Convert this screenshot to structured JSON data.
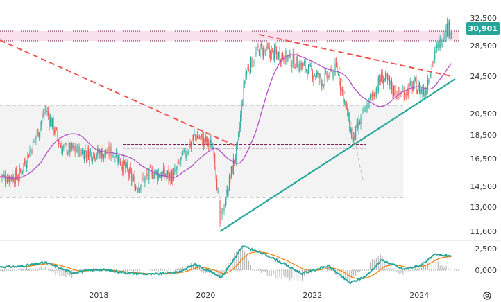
{
  "chart_data": [
    {
      "type": "candlestick",
      "title": "",
      "colors": {
        "up": "#26a69a",
        "down": "#ef5350",
        "ma": "#b24fc8",
        "trendline_resist": "#ef5350",
        "trendline_support": "#26a69a",
        "zone": "#f3b7d4"
      },
      "x_ticks": [
        "2018",
        "2020",
        "2022",
        "2024"
      ],
      "y_ticks": [
        {
          "label": "32,500",
          "value": 32500
        },
        {
          "label": "28,500",
          "value": 28500
        },
        {
          "label": "24,500",
          "value": 24500
        },
        {
          "label": "20,500",
          "value": 20500
        },
        {
          "label": "18,500",
          "value": 18500
        },
        {
          "label": "16,500",
          "value": 16500
        },
        {
          "label": "14,500",
          "value": 14500
        },
        {
          "label": "13,000",
          "value": 13000
        },
        {
          "label": "11,600",
          "value": 11600
        }
      ],
      "current_price": {
        "label": "30,901",
        "value": 30901
      },
      "resistance_zone": [
        29200,
        30600
      ],
      "levels": [
        21400,
        17700,
        17400,
        13700
      ],
      "series_ohlc_anchor_points": [
        {
          "x": 2016.5,
          "close": 15200
        },
        {
          "x": 2016.8,
          "close": 18000
        },
        {
          "x": 2017.0,
          "close": 21000
        },
        {
          "x": 2017.3,
          "close": 17400
        },
        {
          "x": 2017.8,
          "close": 17000
        },
        {
          "x": 2018.3,
          "close": 17000
        },
        {
          "x": 2018.7,
          "close": 14500
        },
        {
          "x": 2019.0,
          "close": 15500
        },
        {
          "x": 2019.4,
          "close": 15200
        },
        {
          "x": 2019.8,
          "close": 18500
        },
        {
          "x": 2020.15,
          "close": 17500
        },
        {
          "x": 2020.27,
          "close": 12000
        },
        {
          "x": 2020.6,
          "close": 17500
        },
        {
          "x": 2020.75,
          "close": 25000
        },
        {
          "x": 2021.0,
          "close": 28000
        },
        {
          "x": 2021.5,
          "close": 27000
        },
        {
          "x": 2021.9,
          "close": 25500
        },
        {
          "x": 2022.2,
          "close": 24000
        },
        {
          "x": 2022.45,
          "close": 25500
        },
        {
          "x": 2022.75,
          "close": 18000
        },
        {
          "x": 2023.0,
          "close": 21000
        },
        {
          "x": 2023.3,
          "close": 24500
        },
        {
          "x": 2023.6,
          "close": 22500
        },
        {
          "x": 2023.9,
          "close": 23500
        },
        {
          "x": 2024.1,
          "close": 22800
        },
        {
          "x": 2024.3,
          "close": 27500
        },
        {
          "x": 2024.5,
          "close": 31000
        }
      ]
    },
    {
      "type": "line",
      "title": "",
      "y_ticks": [
        {
          "label": "2,500",
          "value": 2500
        },
        {
          "label": "0,000",
          "value": 0
        }
      ],
      "series_anchor_points": [
        {
          "x": 2016.5,
          "macd": 400
        },
        {
          "x": 2017.0,
          "macd": 900
        },
        {
          "x": 2017.5,
          "macd": -300
        },
        {
          "x": 2018.0,
          "macd": 100
        },
        {
          "x": 2018.5,
          "macd": -300
        },
        {
          "x": 2019.0,
          "macd": -500
        },
        {
          "x": 2019.5,
          "macd": -200
        },
        {
          "x": 2019.8,
          "macd": 700
        },
        {
          "x": 2020.3,
          "macd": -800
        },
        {
          "x": 2020.7,
          "macd": 2800
        },
        {
          "x": 2021.2,
          "macd": 1600
        },
        {
          "x": 2021.8,
          "macd": -400
        },
        {
          "x": 2022.3,
          "macd": 500
        },
        {
          "x": 2022.7,
          "macd": -1500
        },
        {
          "x": 2023.0,
          "macd": -700
        },
        {
          "x": 2023.3,
          "macd": 1200
        },
        {
          "x": 2023.7,
          "macd": 100
        },
        {
          "x": 2024.0,
          "macd": 500
        },
        {
          "x": 2024.3,
          "macd": 1800
        },
        {
          "x": 2024.5,
          "macd": 1700
        }
      ]
    }
  ],
  "ui": {
    "settings_icon": "gear-icon"
  }
}
